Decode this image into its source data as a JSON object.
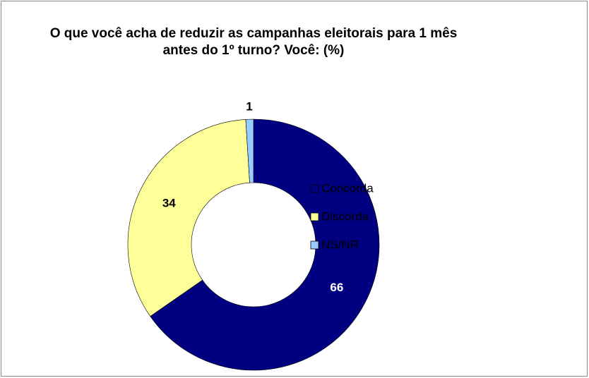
{
  "chart_data": {
    "type": "donut",
    "title": "O que você acha de reduzir as campanhas eleitorais para 1 mês antes do 1º turno? Você: (%)",
    "categories": [
      "Concorda",
      "Discorda",
      "NS/NR"
    ],
    "values": [
      66,
      34,
      1
    ],
    "colors": [
      "#000080",
      "#ffff99",
      "#99ccff"
    ],
    "legend": "right"
  }
}
